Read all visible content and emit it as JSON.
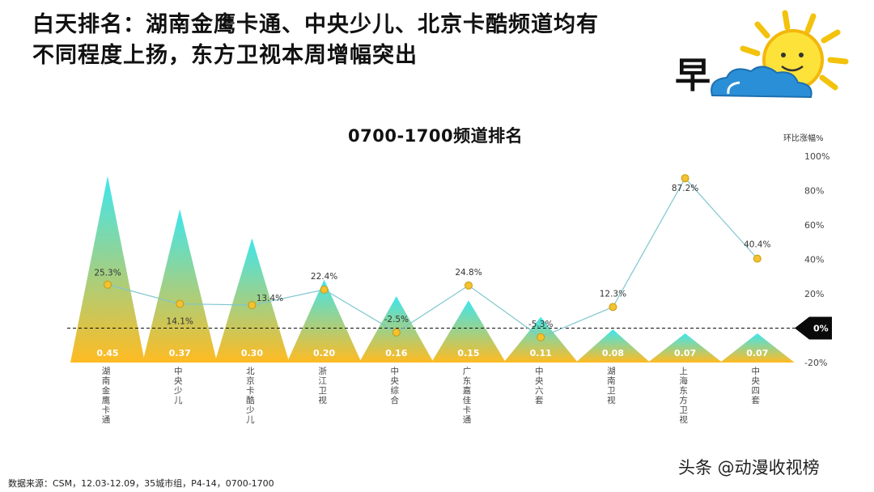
{
  "headline": {
    "line1": "白天排名：湖南金鹰卡通、中央少儿、北京卡酷频道均有",
    "line2": "不同程度上扬，东方卫视本周增幅突出"
  },
  "badge_char": "早",
  "footer": {
    "source": "数据来源：CSM，12.03-12.09，35城市组，P4-14，0700-1700",
    "watermark": "头条 @动漫收视榜"
  },
  "colors": {
    "triangle_top": "#3ee6ee",
    "triangle_bottom": "#ffbb22",
    "line": "#7fc6cf",
    "marker": "#f2c230",
    "marker_stroke": "#c99a10"
  },
  "chart_data": {
    "type": "bar",
    "title": "0700-1700频道排名",
    "categories": [
      "湖南金鹰卡通",
      "中央少儿",
      "北京卡酷少儿",
      "浙江卫视",
      "中央综合",
      "广东嘉佳卡通",
      "中央六套",
      "湖南卫视",
      "上海东方卫视",
      "中央四套"
    ],
    "series": [
      {
        "type": "bar",
        "values": [
          0.45,
          0.37,
          0.3,
          0.2,
          0.16,
          0.15,
          0.11,
          0.08,
          0.07,
          0.07
        ],
        "labels": [
          "0.45",
          "0.37",
          "0.30",
          "0.20",
          "0.16",
          "0.15",
          "0.11",
          "0.08",
          "0.07",
          "0.07"
        ]
      },
      {
        "type": "line",
        "values": [
          25.3,
          14.1,
          13.4,
          22.4,
          -2.5,
          24.8,
          -5.3,
          12.3,
          87.2,
          40.4
        ],
        "labels": [
          "25.3%",
          "14.1%",
          "13.4%",
          "22.4%",
          "-2.5%",
          "24.8%",
          "-5.3%",
          "12.3%",
          "87.2%",
          "40.4%"
        ]
      }
    ],
    "y2label": "环比涨幅%",
    "y2lim": [
      -20,
      100
    ],
    "y2ticks": [
      "100%",
      "80%",
      "60%",
      "40%",
      "20%",
      "0%",
      "-20%"
    ],
    "zero_label": "0%"
  }
}
